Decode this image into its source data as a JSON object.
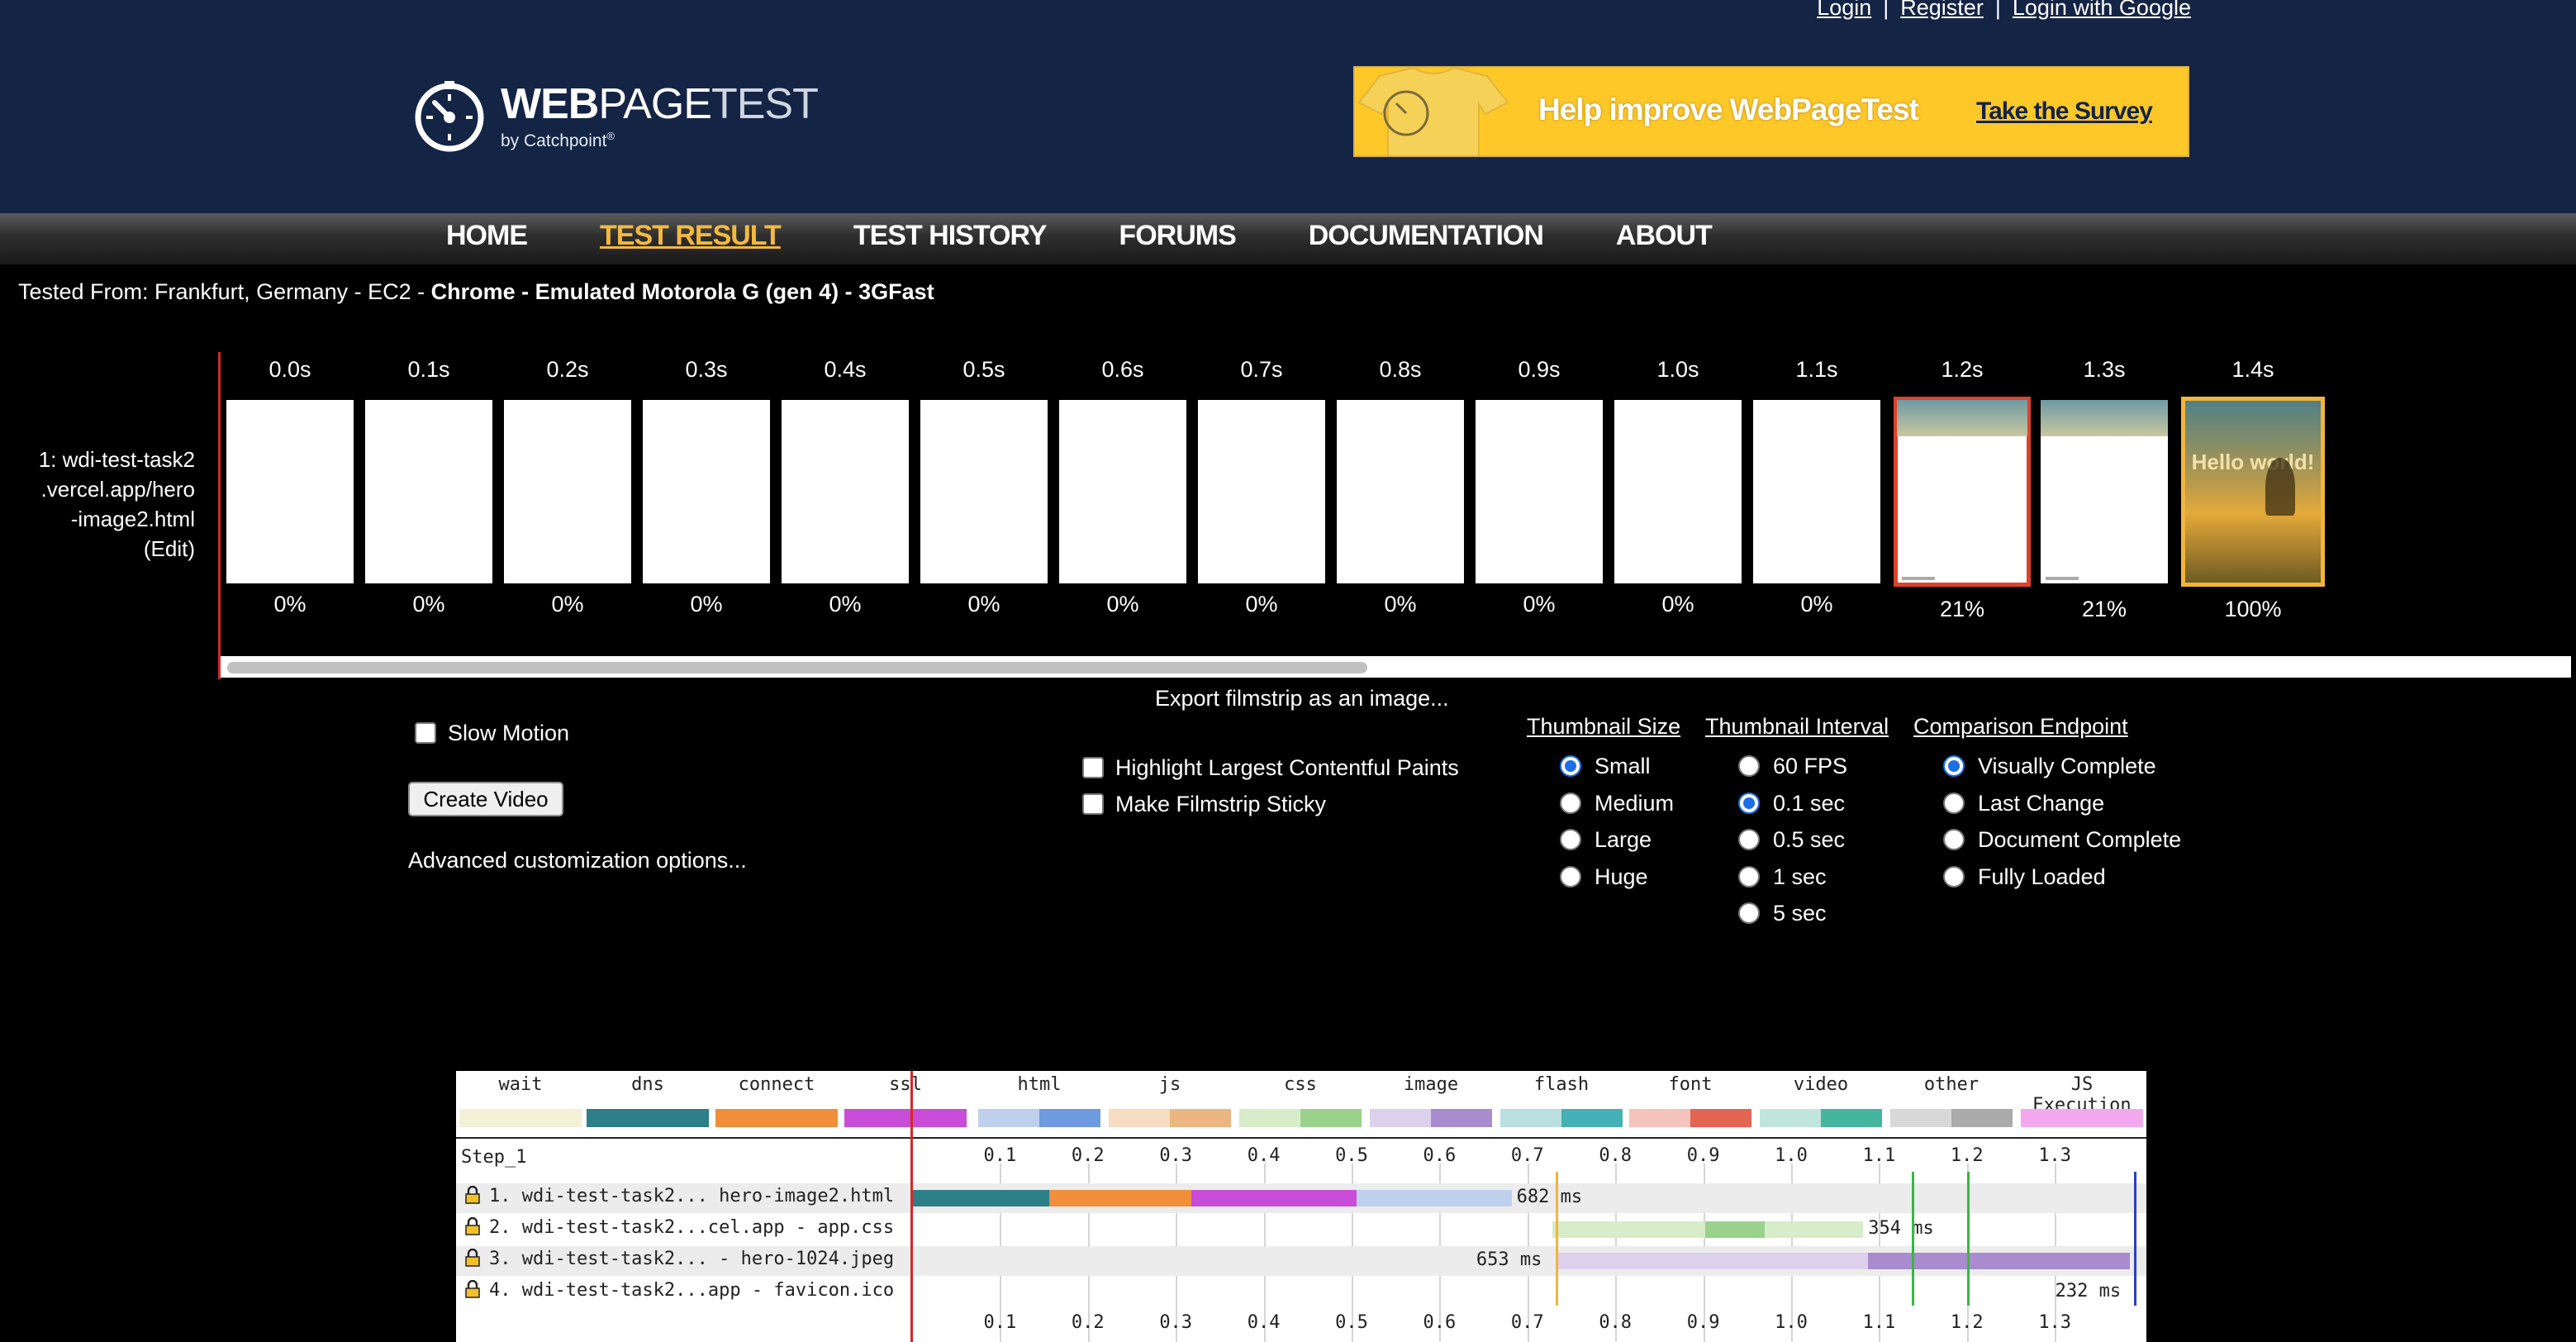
{
  "header": {
    "auth": [
      "Login",
      "Register",
      "Login with Google"
    ],
    "logo": {
      "bold": "WEB",
      "mid": "PAGE",
      "light": "TEST",
      "sub": "by Catchpoint",
      "reg": "®"
    },
    "banner": {
      "text": "Help improve WebPageTest",
      "cta": "Take the Survey"
    }
  },
  "nav": {
    "items": [
      "HOME",
      "TEST RESULT",
      "TEST HISTORY",
      "FORUMS",
      "DOCUMENTATION",
      "ABOUT"
    ],
    "active_index": 1
  },
  "tested_from": {
    "plain": "Tested From: Frankfurt, Germany - EC2 - ",
    "bold": "Chrome - Emulated Motorola G (gen 4) - 3GFast"
  },
  "filmstrip": {
    "label_lines": [
      "1: wdi-test-task2",
      ".vercel.app/hero",
      "-image2.html",
      "(Edit)"
    ],
    "frames": [
      {
        "time": "0.0s",
        "pct": "0%",
        "kind": "blank"
      },
      {
        "time": "0.1s",
        "pct": "0%",
        "kind": "blank"
      },
      {
        "time": "0.2s",
        "pct": "0%",
        "kind": "blank"
      },
      {
        "time": "0.3s",
        "pct": "0%",
        "kind": "blank"
      },
      {
        "time": "0.4s",
        "pct": "0%",
        "kind": "blank"
      },
      {
        "time": "0.5s",
        "pct": "0%",
        "kind": "blank"
      },
      {
        "time": "0.6s",
        "pct": "0%",
        "kind": "blank"
      },
      {
        "time": "0.7s",
        "pct": "0%",
        "kind": "blank"
      },
      {
        "time": "0.8s",
        "pct": "0%",
        "kind": "blank"
      },
      {
        "time": "0.9s",
        "pct": "0%",
        "kind": "blank"
      },
      {
        "time": "1.0s",
        "pct": "0%",
        "kind": "blank"
      },
      {
        "time": "1.1s",
        "pct": "0%",
        "kind": "blank"
      },
      {
        "time": "1.2s",
        "pct": "21%",
        "kind": "partial",
        "highlight": "#e0412b"
      },
      {
        "time": "1.3s",
        "pct": "21%",
        "kind": "partial"
      },
      {
        "time": "1.4s",
        "pct": "100%",
        "kind": "complete",
        "highlight": "#f3b43c",
        "image_text": "Hello world!"
      }
    ]
  },
  "controls": {
    "export_link": "Export filmstrip as an image...",
    "slow_motion": "Slow Motion",
    "create_video": "Create Video",
    "advanced": "Advanced customization options...",
    "highlight_lcp": "Highlight Largest Contentful Paints",
    "sticky": "Make Filmstrip Sticky",
    "thumbnail_size": {
      "title": "Thumbnail Size",
      "options": [
        "Small",
        "Medium",
        "Large",
        "Huge"
      ],
      "selected": 0
    },
    "thumbnail_interval": {
      "title": "Thumbnail Interval",
      "options": [
        "60 FPS",
        "0.1 sec",
        "0.5 sec",
        "1 sec",
        "5 sec"
      ],
      "selected": 1
    },
    "comparison_endpoint": {
      "title": "Comparison Endpoint",
      "options": [
        "Visually Complete",
        "Last Change",
        "Document Complete",
        "Fully Loaded"
      ],
      "selected": 0
    }
  },
  "waterfall": {
    "legend": [
      {
        "name": "wait",
        "colors": [
          "#f3f2d9",
          "#f3f2d9"
        ]
      },
      {
        "name": "dns",
        "colors": [
          "#2c7f86",
          "#2c7f86"
        ]
      },
      {
        "name": "connect",
        "colors": [
          "#f08e3a",
          "#f08e3a"
        ]
      },
      {
        "name": "ssl",
        "colors": [
          "#c84cd7",
          "#c84cd7"
        ]
      },
      {
        "name": "html",
        "colors": [
          "#bed0ec",
          "#6e9bdf"
        ]
      },
      {
        "name": "js",
        "colors": [
          "#f6dcc1",
          "#ecb682"
        ]
      },
      {
        "name": "css",
        "colors": [
          "#d7ecc8",
          "#9bd28b"
        ]
      },
      {
        "name": "image",
        "colors": [
          "#ddd0ec",
          "#a98bd0"
        ]
      },
      {
        "name": "flash",
        "colors": [
          "#b9dfe0",
          "#45b0b5"
        ]
      },
      {
        "name": "font",
        "colors": [
          "#f3c3bc",
          "#e36450"
        ]
      },
      {
        "name": "video",
        "colors": [
          "#bfe5dc",
          "#45b59d"
        ]
      },
      {
        "name": "other",
        "colors": [
          "#d8d8d8",
          "#ababab"
        ]
      },
      {
        "name": "JS Execution",
        "colors": [
          "#f3a8ee",
          "#f3a8ee"
        ]
      }
    ],
    "step": "Step_1",
    "ticks": [
      "0.1",
      "0.2",
      "0.3",
      "0.4",
      "0.5",
      "0.6",
      "0.7",
      "0.8",
      "0.9",
      "1.0",
      "1.1",
      "1.2",
      "1.3"
    ],
    "rows": [
      {
        "label": "1. wdi-test-task2... hero-image2.html",
        "ms": "682 ms",
        "start_s": 0.0,
        "end_s": 0.682,
        "segments": [
          {
            "from": 0.0,
            "to": 0.156,
            "color": "#2c7f86"
          },
          {
            "from": 0.156,
            "to": 0.318,
            "color": "#f08e3a"
          },
          {
            "from": 0.318,
            "to": 0.506,
            "color": "#c84cd7"
          },
          {
            "from": 0.506,
            "to": 0.682,
            "color": "#bed0ec"
          }
        ]
      },
      {
        "label": "2. wdi-test-task2...cel.app - app.css",
        "ms": "354 ms",
        "start_s": 0.728,
        "end_s": 1.082,
        "segments": [
          {
            "from": 0.728,
            "to": 0.902,
            "color": "#d7ecc8"
          },
          {
            "from": 0.902,
            "to": 0.97,
            "color": "#9bd28b"
          },
          {
            "from": 0.97,
            "to": 1.082,
            "color": "#d7ecc8"
          }
        ]
      },
      {
        "label": "3. wdi-test-task2... - hero-1024.jpeg",
        "ms": "653 ms",
        "start_s": 0.732,
        "end_s": 1.385,
        "segments": [
          {
            "from": 0.732,
            "to": 1.087,
            "color": "#ddd0ec"
          },
          {
            "from": 1.087,
            "to": 1.385,
            "color": "#a98bd0"
          }
        ]
      },
      {
        "label": "4. wdi-test-task2...app - favicon.ico",
        "ms": "232 ms",
        "start_s": 1.153,
        "end_s": 1.385,
        "segments": []
      }
    ],
    "markers": [
      {
        "t": 0.732,
        "color": "#f3b43c"
      },
      {
        "t": 1.137,
        "color": "#41b24a"
      },
      {
        "t": 1.2,
        "color": "#41b24a"
      },
      {
        "t": 1.39,
        "color": "#2740c9"
      }
    ],
    "red_line_s": 0.0
  }
}
